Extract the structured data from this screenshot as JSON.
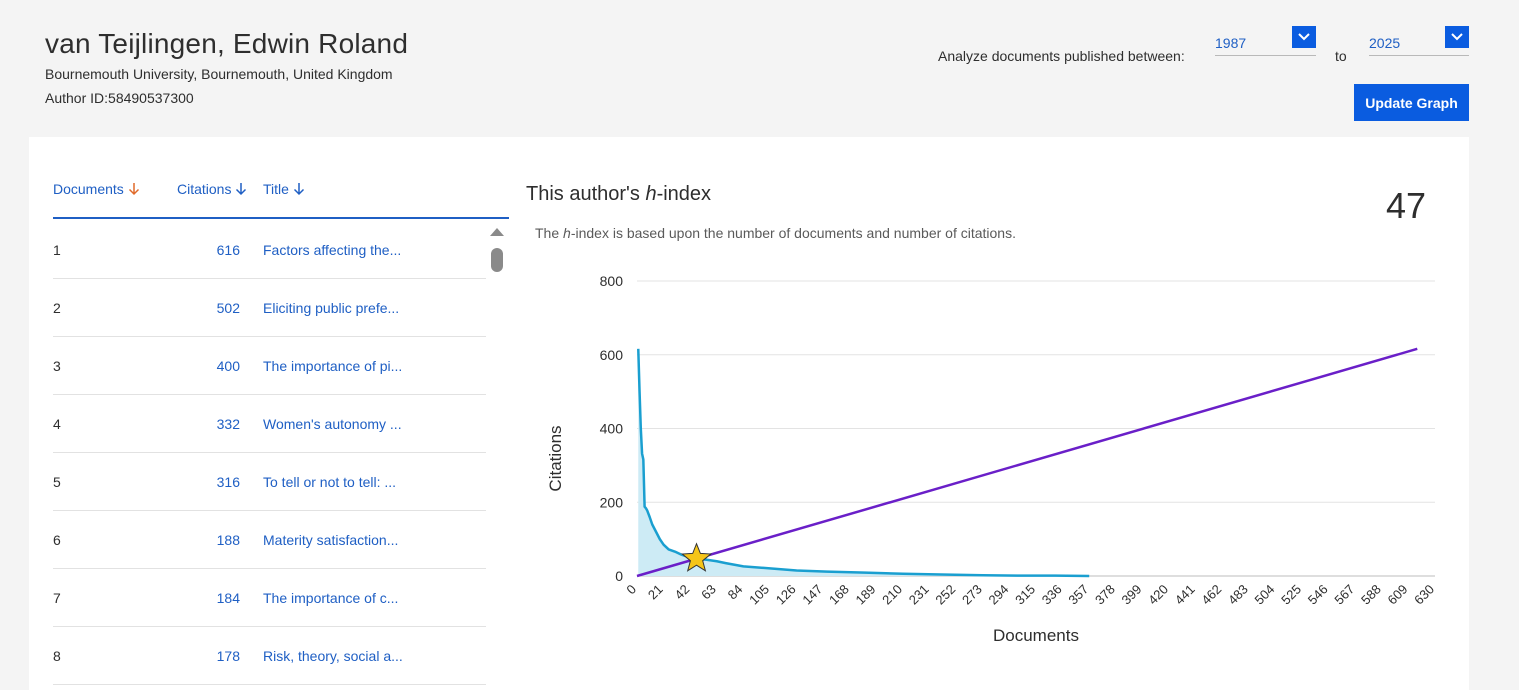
{
  "author": {
    "name": "van Teijlingen, Edwin Roland",
    "affiliation": "Bournemouth University, Bournemouth, United Kingdom",
    "author_id": "Author ID:58490537300"
  },
  "range": {
    "label": "Analyze documents published between:",
    "from": "1987",
    "to_label": "to",
    "to": "2025",
    "update_label": "Update Graph"
  },
  "table": {
    "headers": {
      "documents": "Documents",
      "citations": "Citations",
      "title": "Title"
    },
    "rows": [
      {
        "n": "1",
        "citations": "616",
        "title": "Factors affecting the..."
      },
      {
        "n": "2",
        "citations": "502",
        "title": "Eliciting public prefe..."
      },
      {
        "n": "3",
        "citations": "400",
        "title": "The importance of pi..."
      },
      {
        "n": "4",
        "citations": "332",
        "title": "Women's autonomy ..."
      },
      {
        "n": "5",
        "citations": "316",
        "title": "To tell or not to tell: ..."
      },
      {
        "n": "6",
        "citations": "188",
        "title": "Materity satisfaction..."
      },
      {
        "n": "7",
        "citations": "184",
        "title": "The importance of c..."
      },
      {
        "n": "8",
        "citations": "178",
        "title": "Risk, theory, social a..."
      }
    ]
  },
  "hindex": {
    "title_pre": "This author's ",
    "title_em": "h",
    "title_post": "-index",
    "sub_pre": "The ",
    "sub_em": "h",
    "sub_post": "-index is based upon the number of documents and number of citations.",
    "value": "47"
  },
  "colors": {
    "accent": "#0a5ce0",
    "link": "#1f5fc4",
    "citation_line": "#1a9fd0",
    "area_fill": "#cdebf5",
    "h_line": "#6a1fc8",
    "star": "#f5c518",
    "sort_docs": "#e06a2a"
  },
  "chart_data": {
    "type": "area",
    "xlabel": "Documents",
    "ylabel": "Citations",
    "xlim": [
      0,
      630
    ],
    "ylim": [
      0,
      800
    ],
    "x_ticks": [
      0,
      21,
      42,
      63,
      84,
      105,
      126,
      147,
      168,
      189,
      210,
      231,
      252,
      273,
      294,
      315,
      336,
      357,
      378,
      399,
      420,
      441,
      462,
      483,
      504,
      525,
      546,
      567,
      588,
      609,
      630
    ],
    "y_ticks": [
      0,
      200,
      400,
      600,
      800
    ],
    "grid": true,
    "series": [
      {
        "x": [
          1,
          2,
          3,
          4,
          5,
          6,
          7,
          8,
          10,
          12,
          15,
          18,
          21,
          25,
          30,
          35,
          40,
          47,
          55,
          63,
          70,
          84,
          100,
          126,
          150,
          180,
          210,
          240,
          273,
          300,
          330,
          357
        ],
        "values": [
          616,
          502,
          400,
          332,
          316,
          188,
          184,
          178,
          160,
          140,
          120,
          100,
          85,
          72,
          66,
          58,
          52,
          47,
          44,
          40,
          35,
          26,
          22,
          15,
          12,
          9,
          6,
          4,
          2,
          1,
          1,
          0
        ]
      },
      {
        "x": [
          0,
          616
        ],
        "values": [
          0,
          616
        ]
      }
    ],
    "h_index_point": {
      "x": 47,
      "y": 47
    }
  }
}
